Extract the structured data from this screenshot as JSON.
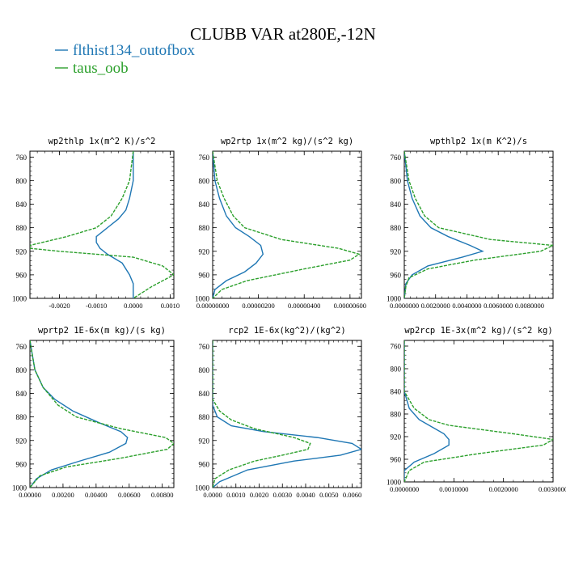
{
  "figure": {
    "title": "CLUBB VAR at280E,-12N",
    "legend": [
      {
        "name": "flthist134_outofbox",
        "color": "#1f77b4",
        "dash": "solid"
      },
      {
        "name": "taus_oob",
        "color": "#2ca02c",
        "dash": "dashed"
      }
    ]
  },
  "chart_data": [
    {
      "type": "line",
      "title": "wp2thlp  1x(m^2 K)/s^2",
      "xlim": [
        -0.0028,
        0.0011
      ],
      "ylim": [
        1000,
        750
      ],
      "y_ticks": [
        760,
        800,
        840,
        880,
        920,
        960,
        1000
      ],
      "x_ticks": [
        -0.002,
        -0.001,
        0.0,
        0.001
      ],
      "x_tick_labels": [
        "-0.0020",
        "-0.0010",
        "0.0000",
        "0.0010"
      ],
      "series": [
        {
          "name": "flthist134_outofbox",
          "y": [
            750,
            770,
            800,
            830,
            850,
            865,
            880,
            895,
            905,
            915,
            925,
            940,
            960,
            975,
            990,
            1000
          ],
          "values": [
            0.0,
            0.0,
            0.0,
            -0.0001,
            -0.0002,
            -0.0004,
            -0.0007,
            -0.001,
            -0.001,
            -0.0009,
            -0.0007,
            -0.0003,
            -0.0001,
            0.0,
            0.0,
            0.0
          ]
        },
        {
          "name": "taus_oob",
          "y": [
            750,
            800,
            830,
            860,
            880,
            895,
            910,
            915,
            920,
            930,
            945,
            960,
            980,
            1000
          ],
          "values": [
            0.0,
            -0.0001,
            -0.0003,
            -0.0006,
            -0.001,
            -0.0018,
            -0.0028,
            -0.0028,
            -0.002,
            0.0,
            0.0008,
            0.0011,
            0.0005,
            0.0
          ]
        }
      ]
    },
    {
      "type": "line",
      "title": "wp2rtp  1x(m^2 kg)/(s^2 kg)",
      "xlim": [
        0,
        6.5e-06
      ],
      "ylim": [
        1000,
        750
      ],
      "y_ticks": [
        760,
        800,
        840,
        880,
        920,
        960,
        1000
      ],
      "x_ticks": [
        0,
        2e-06,
        4e-06,
        6e-06
      ],
      "x_tick_labels": [
        "0.00000000",
        "0.00000200",
        "0.00000400",
        "0.00000600"
      ],
      "series": [
        {
          "name": "flthist134_outofbox",
          "y": [
            750,
            800,
            830,
            860,
            880,
            895,
            910,
            925,
            940,
            955,
            970,
            985,
            1000
          ],
          "values": [
            0.0,
            1e-07,
            3e-07,
            6e-07,
            1e-06,
            1.6e-06,
            2.1e-06,
            2.2e-06,
            1.9e-06,
            1.4e-06,
            6e-07,
            1e-07,
            0.0
          ]
        },
        {
          "name": "taus_oob",
          "y": [
            750,
            800,
            830,
            860,
            880,
            900,
            915,
            925,
            935,
            950,
            970,
            985,
            1000
          ],
          "values": [
            0.0,
            2e-07,
            5e-07,
            9e-07,
            1.4e-06,
            3e-06,
            5.5e-06,
            6.4e-06,
            6e-06,
            4e-06,
            1.5e-06,
            4e-07,
            0.0
          ]
        }
      ]
    },
    {
      "type": "line",
      "title": "wpthlp2  1x(m K^2)/s",
      "xlim": [
        0,
        0.0095
      ],
      "ylim": [
        1000,
        750
      ],
      "y_ticks": [
        760,
        800,
        840,
        880,
        920,
        960,
        1000
      ],
      "x_ticks": [
        0,
        0.002,
        0.004,
        0.006,
        0.008
      ],
      "x_tick_labels": [
        "0.0000000",
        "0.0020000",
        "0.0040000",
        "0.0060000",
        "0.0080000"
      ],
      "series": [
        {
          "name": "flthist134_outofbox",
          "y": [
            750,
            800,
            830,
            860,
            880,
            895,
            910,
            920,
            930,
            945,
            960,
            975,
            1000
          ],
          "values": [
            0.0,
            0.0002,
            0.0005,
            0.001,
            0.0017,
            0.0028,
            0.0042,
            0.005,
            0.0037,
            0.0015,
            0.0005,
            0.0001,
            0.0
          ]
        },
        {
          "name": "taus_oob",
          "y": [
            750,
            800,
            830,
            860,
            880,
            900,
            910,
            920,
            935,
            950,
            965,
            980,
            1000
          ],
          "values": [
            0.0,
            0.0003,
            0.0007,
            0.0013,
            0.0022,
            0.0055,
            0.0095,
            0.0087,
            0.0045,
            0.0015,
            0.0003,
            0.0001,
            0.0
          ]
        }
      ]
    },
    {
      "type": "line",
      "title": "wprtp2  1E-6x(m kg)/(s kg)",
      "xlim": [
        0,
        0.0087
      ],
      "ylim": [
        1000,
        750
      ],
      "y_ticks": [
        760,
        800,
        840,
        880,
        920,
        960,
        1000
      ],
      "x_ticks": [
        0,
        0.002,
        0.004,
        0.006,
        0.008
      ],
      "x_tick_labels": [
        "0.00000",
        "0.00200",
        "0.00400",
        "0.00600",
        "0.00800"
      ],
      "series": [
        {
          "name": "flthist134_outofbox",
          "y": [
            750,
            800,
            830,
            850,
            870,
            890,
            905,
            915,
            925,
            940,
            955,
            970,
            985,
            1000
          ],
          "values": [
            0.0,
            0.0003,
            0.0008,
            0.0015,
            0.0026,
            0.0042,
            0.0055,
            0.0059,
            0.0058,
            0.0048,
            0.003,
            0.0013,
            0.0004,
            0.0
          ]
        },
        {
          "name": "taus_oob",
          "y": [
            750,
            800,
            830,
            860,
            880,
            900,
            915,
            925,
            935,
            950,
            965,
            980,
            1000
          ],
          "values": [
            0.0,
            0.0003,
            0.0008,
            0.0017,
            0.0028,
            0.0055,
            0.0082,
            0.0087,
            0.0083,
            0.0055,
            0.0022,
            0.0006,
            0.0
          ]
        }
      ]
    },
    {
      "type": "line",
      "title": "rcp2  1E-6x(kg^2)/(kg^2)",
      "xlim": [
        0,
        0.0064
      ],
      "ylim": [
        1000,
        750
      ],
      "y_ticks": [
        760,
        800,
        840,
        880,
        920,
        960,
        1000
      ],
      "x_ticks": [
        0,
        0.001,
        0.002,
        0.003,
        0.004,
        0.005,
        0.006
      ],
      "x_tick_labels": [
        "0.0000",
        "0.0010",
        "0.0020",
        "0.0030",
        "0.0040",
        "0.0050",
        "0.0060"
      ],
      "series": [
        {
          "name": "flthist134_outofbox",
          "y": [
            750,
            860,
            880,
            895,
            905,
            915,
            925,
            935,
            945,
            955,
            970,
            990,
            1000
          ],
          "values": [
            0.0,
            0.0,
            0.0002,
            0.0008,
            0.0022,
            0.0045,
            0.006,
            0.0064,
            0.0055,
            0.0035,
            0.0015,
            0.0003,
            0.0
          ]
        },
        {
          "name": "taus_oob",
          "y": [
            750,
            850,
            870,
            885,
            900,
            915,
            925,
            935,
            945,
            955,
            970,
            985,
            1000
          ],
          "values": [
            0.0,
            0.0,
            0.0003,
            0.0008,
            0.0018,
            0.0035,
            0.0042,
            0.0041,
            0.003,
            0.0018,
            0.0007,
            0.0001,
            0.0
          ]
        }
      ]
    },
    {
      "type": "line",
      "title": "wp2rcp  1E-3x(m^2 kg)/(s^2 kg)",
      "xlim": [
        0,
        0.003
      ],
      "ylim": [
        1000,
        750
      ],
      "y_ticks": [
        760,
        800,
        840,
        880,
        920,
        960,
        1000
      ],
      "x_ticks": [
        0,
        0.001,
        0.002,
        0.003
      ],
      "x_tick_labels": [
        "0.0000000",
        "0.0010000",
        "0.0020000",
        "0.0030000"
      ],
      "series": [
        {
          "name": "flthist134_outofbox",
          "y": [
            750,
            840,
            870,
            890,
            905,
            915,
            925,
            935,
            950,
            965,
            980,
            1000
          ],
          "values": [
            0.0,
            0.0,
            0.0001,
            0.0003,
            0.0006,
            0.0008,
            0.0009,
            0.0009,
            0.0006,
            0.0002,
            0.0,
            0.0
          ]
        },
        {
          "name": "taus_oob",
          "y": [
            750,
            840,
            870,
            890,
            900,
            915,
            925,
            935,
            950,
            965,
            980,
            1000
          ],
          "values": [
            0.0,
            0.0,
            0.0002,
            0.0005,
            0.0009,
            0.0022,
            0.003,
            0.0028,
            0.0015,
            0.0004,
            0.0001,
            0.0
          ]
        }
      ]
    }
  ]
}
